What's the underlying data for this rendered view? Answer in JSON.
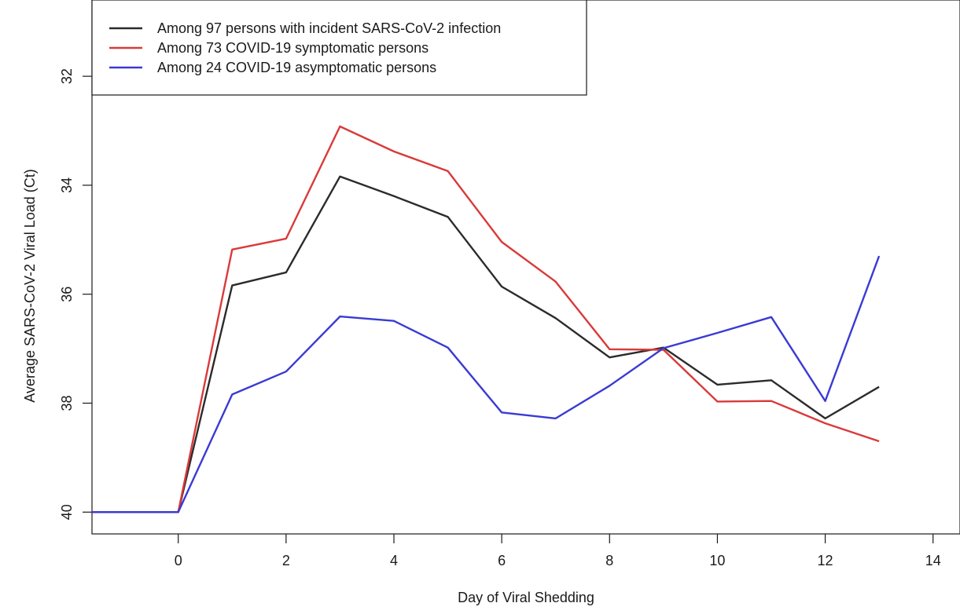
{
  "chart_data": {
    "type": "line",
    "title": "",
    "xlabel": "Day of Viral Shedding",
    "ylabel": "Average SARS-CoV-2 Viral Load (Ct)",
    "xlim": [
      -1.6,
      14.5
    ],
    "ylim": [
      40.4,
      30.6
    ],
    "y_inverted": true,
    "x_ticks": [
      0,
      2,
      4,
      6,
      8,
      10,
      12,
      14
    ],
    "x_tick_labels": [
      "0",
      "2",
      "4",
      "6",
      "8",
      "10",
      "12",
      "14"
    ],
    "y_ticks": [
      32,
      34,
      36,
      38,
      40
    ],
    "y_tick_labels": [
      "32",
      "34",
      "36",
      "38",
      "40"
    ],
    "grid": false,
    "legend_position": "top-left",
    "x": [
      -2,
      -1,
      0,
      1,
      2,
      3,
      4,
      5,
      6,
      7,
      8,
      9,
      10,
      11,
      12,
      13
    ],
    "series": [
      {
        "name": "Among 97 persons with incident SARS-CoV-2 infection",
        "color": "#2b2b2b",
        "values": [
          40,
          40,
          40,
          35.84,
          35.6,
          33.84,
          34.2,
          34.58,
          35.86,
          36.44,
          37.16,
          36.98,
          37.66,
          37.58,
          38.28,
          37.7
        ]
      },
      {
        "name": "Among 73 COVID-19 symptomatic persons",
        "color": "#d93a3a",
        "values": [
          40,
          40,
          40,
          35.18,
          34.98,
          32.92,
          33.38,
          33.74,
          35.04,
          35.77,
          37.01,
          37.02,
          37.97,
          37.96,
          38.37,
          38.7
        ]
      },
      {
        "name": "Among 24 COVID-19 asymptomatic persons",
        "color": "#3a3ad4",
        "values": [
          40,
          40,
          40,
          37.84,
          37.42,
          36.41,
          36.49,
          36.98,
          38.17,
          38.28,
          37.68,
          36.99,
          36.71,
          36.42,
          37.96,
          35.3
        ]
      }
    ]
  }
}
